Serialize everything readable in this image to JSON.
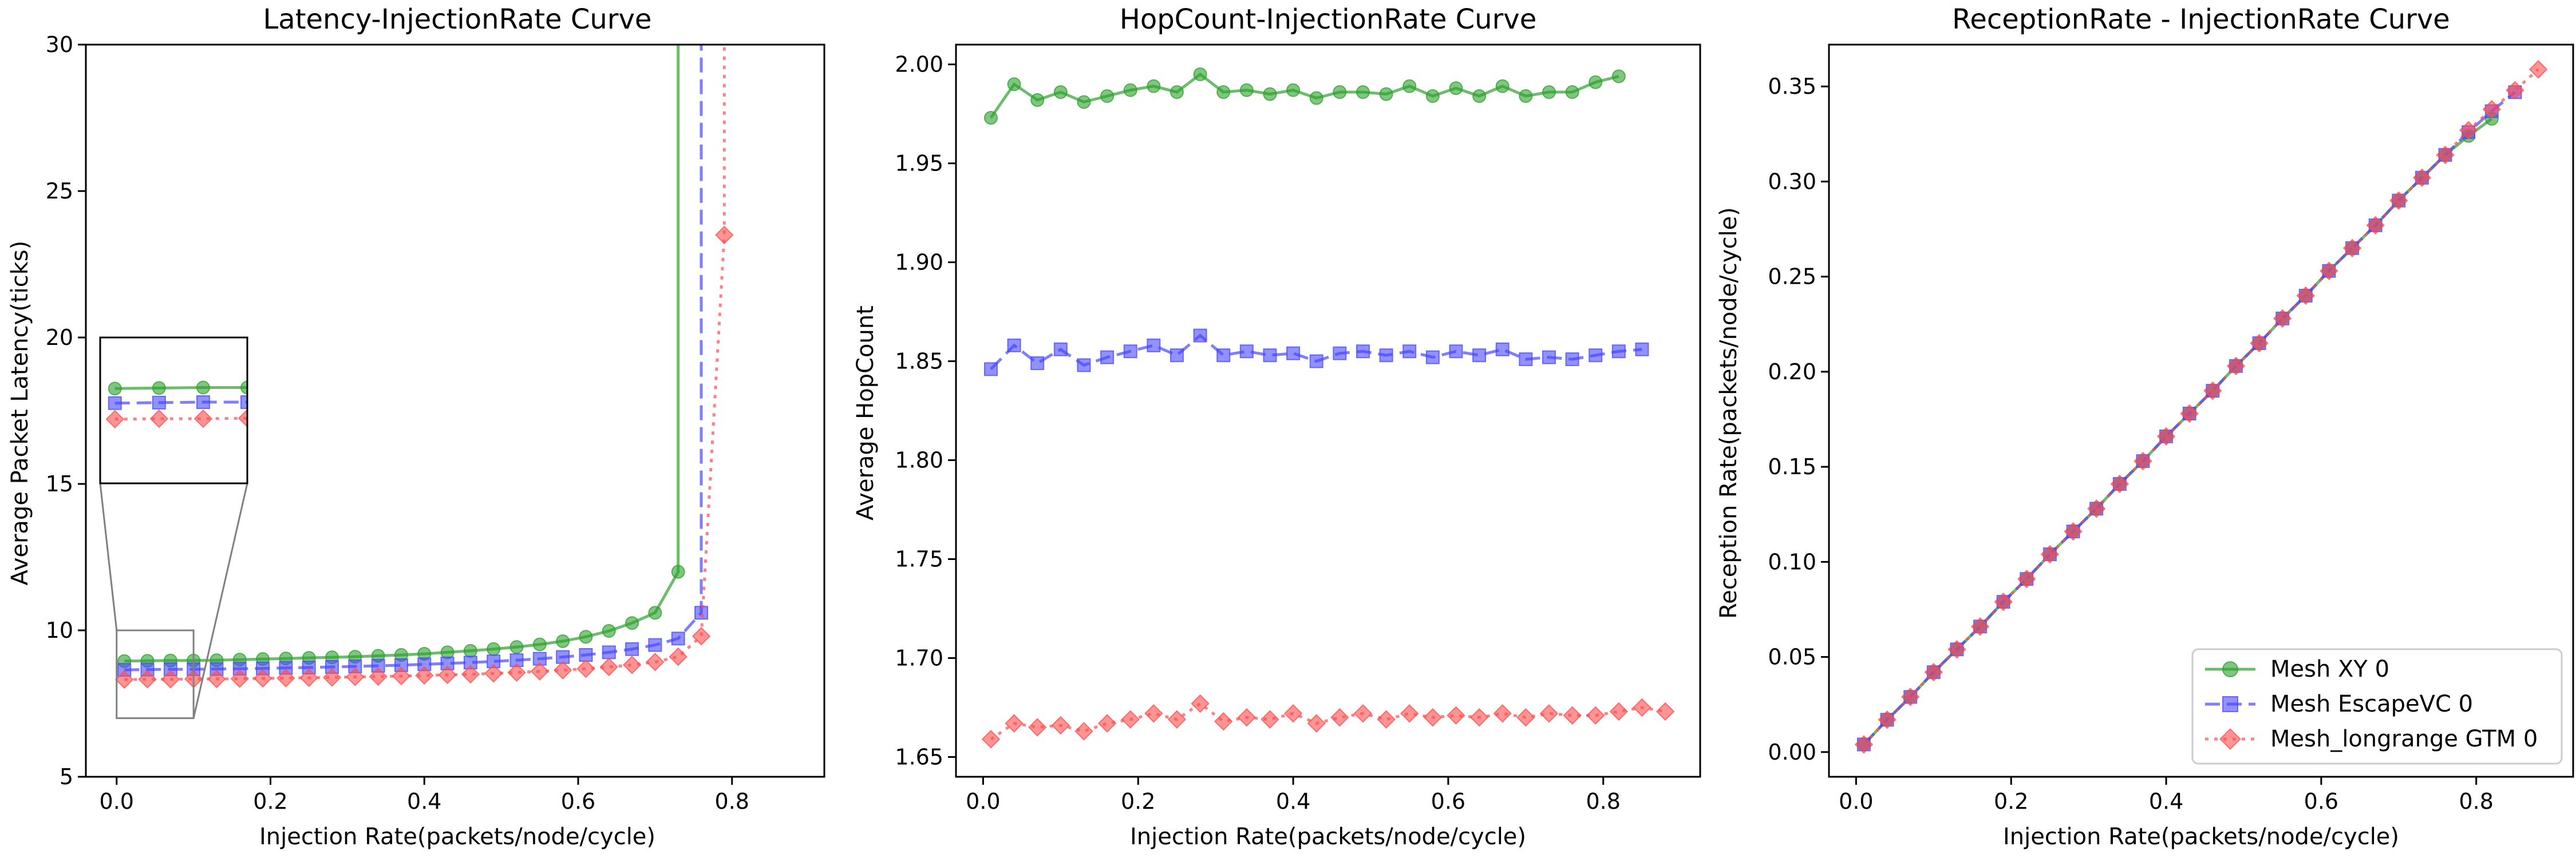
{
  "figure": {
    "legend": {
      "entries": [
        "Mesh XY 0",
        "Mesh EscapeVC 0",
        "Mesh_longrange GTM 0"
      ],
      "placement": "lower-right of third panel"
    },
    "series_style": [
      {
        "name": "Mesh XY 0",
        "color": "#2ca02c",
        "marker": "circle",
        "line": "solid"
      },
      {
        "name": "Mesh EscapeVC 0",
        "color": "#4747ff",
        "marker": "square",
        "line": "dashed"
      },
      {
        "name": "Mesh_longrange GTM 0",
        "color": "#ff4d4d",
        "marker": "diamond",
        "line": "dotted"
      }
    ]
  },
  "chart_data": [
    {
      "type": "line",
      "title": "Latency-InjectionRate Curve",
      "xlabel": "Injection Rate(packets/node/cycle)",
      "ylabel": "Average Packet Latency(ticks)",
      "xlim": [
        -0.04,
        0.92
      ],
      "ylim": [
        5,
        30
      ],
      "xticks": [
        "0.0",
        "0.2",
        "0.4",
        "0.6",
        "0.8"
      ],
      "xtick_values": [
        0.0,
        0.2,
        0.4,
        0.6,
        0.8
      ],
      "yticks": [
        "5",
        "10",
        "15",
        "20",
        "25",
        "30"
      ],
      "ytick_values": [
        5,
        10,
        15,
        20,
        25,
        30
      ],
      "grid": false,
      "inset": {
        "xlim": [
          0.0,
          0.1
        ],
        "ylim": [
          7,
          10
        ]
      },
      "series": [
        {
          "name": "Mesh XY 0",
          "x": [
            0.01,
            0.04,
            0.07,
            0.1,
            0.13,
            0.16,
            0.19,
            0.22,
            0.25,
            0.28,
            0.31,
            0.34,
            0.37,
            0.4,
            0.43,
            0.46,
            0.49,
            0.52,
            0.55,
            0.58,
            0.61,
            0.64,
            0.67,
            0.7,
            0.73,
            0.73
          ],
          "y": [
            8.95,
            8.96,
            8.97,
            8.97,
            8.98,
            9.0,
            9.02,
            9.04,
            9.06,
            9.08,
            9.1,
            9.13,
            9.16,
            9.2,
            9.25,
            9.3,
            9.36,
            9.43,
            9.52,
            9.63,
            9.78,
            9.98,
            10.25,
            10.6,
            12.0,
            30
          ]
        },
        {
          "name": "Mesh EscapeVC 0",
          "x": [
            0.01,
            0.04,
            0.07,
            0.1,
            0.13,
            0.16,
            0.19,
            0.22,
            0.25,
            0.28,
            0.31,
            0.34,
            0.37,
            0.4,
            0.43,
            0.46,
            0.49,
            0.52,
            0.55,
            0.58,
            0.61,
            0.64,
            0.67,
            0.7,
            0.73,
            0.76,
            0.76
          ],
          "y": [
            8.65,
            8.66,
            8.67,
            8.67,
            8.68,
            8.69,
            8.7,
            8.72,
            8.73,
            8.75,
            8.77,
            8.79,
            8.81,
            8.84,
            8.87,
            8.9,
            8.94,
            8.98,
            9.03,
            9.09,
            9.16,
            9.25,
            9.36,
            9.5,
            9.72,
            10.6,
            30
          ]
        },
        {
          "name": "Mesh_longrange GTM 0",
          "x": [
            0.01,
            0.04,
            0.07,
            0.1,
            0.13,
            0.16,
            0.19,
            0.22,
            0.25,
            0.28,
            0.31,
            0.34,
            0.37,
            0.4,
            0.43,
            0.46,
            0.49,
            0.52,
            0.55,
            0.58,
            0.61,
            0.64,
            0.67,
            0.7,
            0.73,
            0.76,
            0.79,
            0.79
          ],
          "y": [
            8.32,
            8.33,
            8.33,
            8.34,
            8.34,
            8.35,
            8.36,
            8.37,
            8.38,
            8.39,
            8.41,
            8.42,
            8.44,
            8.46,
            8.48,
            8.5,
            8.53,
            8.56,
            8.6,
            8.64,
            8.69,
            8.75,
            8.82,
            8.92,
            9.1,
            9.8,
            23.5,
            30
          ]
        }
      ]
    },
    {
      "type": "line",
      "title": "HopCount-InjectionRate Curve",
      "xlabel": "Injection Rate(packets/node/cycle)",
      "ylabel": "Average HopCount",
      "xlim": [
        -0.035,
        0.925
      ],
      "ylim": [
        1.64,
        2.01
      ],
      "xticks": [
        "0.0",
        "0.2",
        "0.4",
        "0.6",
        "0.8"
      ],
      "xtick_values": [
        0.0,
        0.2,
        0.4,
        0.6,
        0.8
      ],
      "yticks": [
        "1.65",
        "1.70",
        "1.75",
        "1.80",
        "1.85",
        "1.90",
        "1.95",
        "2.00"
      ],
      "ytick_values": [
        1.65,
        1.7,
        1.75,
        1.8,
        1.85,
        1.9,
        1.95,
        2.0
      ],
      "grid": false,
      "series": [
        {
          "name": "Mesh XY 0",
          "x": [
            0.01,
            0.04,
            0.07,
            0.1,
            0.13,
            0.16,
            0.19,
            0.22,
            0.25,
            0.28,
            0.31,
            0.34,
            0.37,
            0.4,
            0.43,
            0.46,
            0.49,
            0.52,
            0.55,
            0.58,
            0.61,
            0.64,
            0.67,
            0.7,
            0.73,
            0.76,
            0.79,
            0.82
          ],
          "y": [
            1.973,
            1.99,
            1.982,
            1.986,
            1.981,
            1.984,
            1.987,
            1.989,
            1.986,
            1.995,
            1.986,
            1.987,
            1.985,
            1.987,
            1.983,
            1.986,
            1.986,
            1.985,
            1.989,
            1.984,
            1.988,
            1.984,
            1.989,
            1.984,
            1.986,
            1.986,
            1.991,
            1.994
          ]
        },
        {
          "name": "Mesh EscapeVC 0",
          "x": [
            0.01,
            0.04,
            0.07,
            0.1,
            0.13,
            0.16,
            0.19,
            0.22,
            0.25,
            0.28,
            0.31,
            0.34,
            0.37,
            0.4,
            0.43,
            0.46,
            0.49,
            0.52,
            0.55,
            0.58,
            0.61,
            0.64,
            0.67,
            0.7,
            0.73,
            0.76,
            0.79,
            0.82,
            0.85
          ],
          "y": [
            1.846,
            1.858,
            1.849,
            1.856,
            1.848,
            1.852,
            1.855,
            1.858,
            1.853,
            1.863,
            1.853,
            1.855,
            1.853,
            1.854,
            1.85,
            1.854,
            1.855,
            1.853,
            1.855,
            1.852,
            1.855,
            1.853,
            1.856,
            1.851,
            1.852,
            1.851,
            1.853,
            1.855,
            1.856
          ]
        },
        {
          "name": "Mesh_longrange GTM 0",
          "x": [
            0.01,
            0.04,
            0.07,
            0.1,
            0.13,
            0.16,
            0.19,
            0.22,
            0.25,
            0.28,
            0.31,
            0.34,
            0.37,
            0.4,
            0.43,
            0.46,
            0.49,
            0.52,
            0.55,
            0.58,
            0.61,
            0.64,
            0.67,
            0.7,
            0.73,
            0.76,
            0.79,
            0.82,
            0.85,
            0.88
          ],
          "y": [
            1.659,
            1.667,
            1.665,
            1.666,
            1.663,
            1.667,
            1.669,
            1.672,
            1.669,
            1.677,
            1.668,
            1.67,
            1.669,
            1.672,
            1.667,
            1.67,
            1.672,
            1.669,
            1.672,
            1.67,
            1.671,
            1.67,
            1.672,
            1.67,
            1.672,
            1.671,
            1.671,
            1.673,
            1.675,
            1.673
          ]
        }
      ]
    },
    {
      "type": "line",
      "title": "ReceptionRate - InjectionRate Curve",
      "xlabel": "Injection Rate(packets/node/cycle)",
      "ylabel": "Reception Rate(packets/node/cycle)",
      "xlim": [
        -0.035,
        0.925
      ],
      "ylim": [
        -0.013,
        0.372
      ],
      "xticks": [
        "0.0",
        "0.2",
        "0.4",
        "0.6",
        "0.8"
      ],
      "xtick_values": [
        0.0,
        0.2,
        0.4,
        0.6,
        0.8
      ],
      "yticks": [
        "0.00",
        "0.05",
        "0.10",
        "0.15",
        "0.20",
        "0.25",
        "0.30",
        "0.35"
      ],
      "ytick_values": [
        0.0,
        0.05,
        0.1,
        0.15,
        0.2,
        0.25,
        0.3,
        0.35
      ],
      "grid": false,
      "series": [
        {
          "name": "Mesh XY 0",
          "x": [
            0.01,
            0.04,
            0.07,
            0.1,
            0.13,
            0.16,
            0.19,
            0.22,
            0.25,
            0.28,
            0.31,
            0.34,
            0.37,
            0.4,
            0.43,
            0.46,
            0.49,
            0.52,
            0.55,
            0.58,
            0.61,
            0.64,
            0.67,
            0.7,
            0.73,
            0.76,
            0.79,
            0.82
          ],
          "y": [
            0.004,
            0.017,
            0.029,
            0.042,
            0.054,
            0.066,
            0.079,
            0.091,
            0.104,
            0.116,
            0.128,
            0.141,
            0.153,
            0.166,
            0.178,
            0.19,
            0.203,
            0.215,
            0.228,
            0.24,
            0.253,
            0.265,
            0.277,
            0.29,
            0.302,
            0.314,
            0.324,
            0.333
          ]
        },
        {
          "name": "Mesh EscapeVC 0",
          "x": [
            0.01,
            0.04,
            0.07,
            0.1,
            0.13,
            0.16,
            0.19,
            0.22,
            0.25,
            0.28,
            0.31,
            0.34,
            0.37,
            0.4,
            0.43,
            0.46,
            0.49,
            0.52,
            0.55,
            0.58,
            0.61,
            0.64,
            0.67,
            0.7,
            0.73,
            0.76,
            0.79,
            0.82,
            0.85
          ],
          "y": [
            0.004,
            0.017,
            0.029,
            0.042,
            0.054,
            0.066,
            0.079,
            0.091,
            0.104,
            0.116,
            0.128,
            0.141,
            0.153,
            0.166,
            0.178,
            0.19,
            0.203,
            0.215,
            0.228,
            0.24,
            0.253,
            0.265,
            0.277,
            0.29,
            0.302,
            0.314,
            0.326,
            0.337,
            0.347
          ]
        },
        {
          "name": "Mesh_longrange GTM 0",
          "x": [
            0.01,
            0.04,
            0.07,
            0.1,
            0.13,
            0.16,
            0.19,
            0.22,
            0.25,
            0.28,
            0.31,
            0.34,
            0.37,
            0.4,
            0.43,
            0.46,
            0.49,
            0.52,
            0.55,
            0.58,
            0.61,
            0.64,
            0.67,
            0.7,
            0.73,
            0.76,
            0.79,
            0.82,
            0.85,
            0.88
          ],
          "y": [
            0.004,
            0.017,
            0.029,
            0.042,
            0.054,
            0.066,
            0.079,
            0.091,
            0.104,
            0.116,
            0.128,
            0.141,
            0.153,
            0.166,
            0.178,
            0.19,
            0.203,
            0.215,
            0.228,
            0.24,
            0.253,
            0.265,
            0.277,
            0.29,
            0.302,
            0.314,
            0.327,
            0.338,
            0.348,
            0.359
          ]
        }
      ]
    }
  ]
}
